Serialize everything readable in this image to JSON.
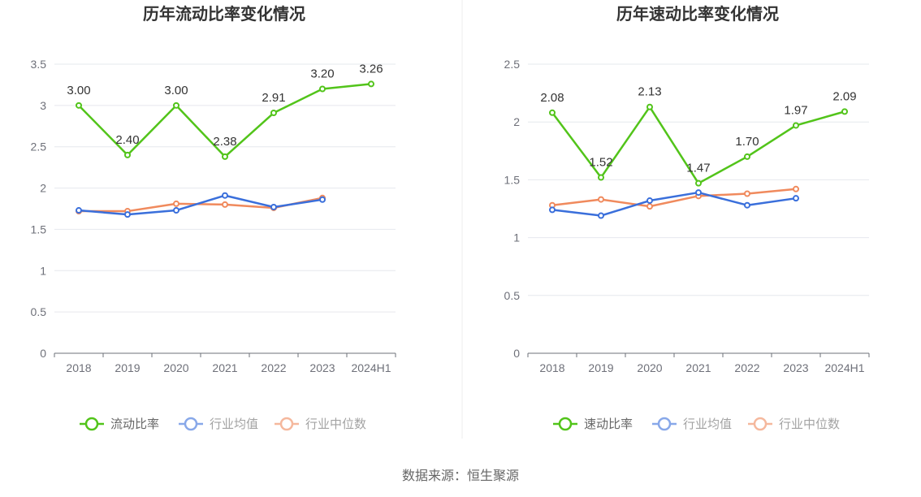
{
  "source_text": "数据来源：恒生聚源",
  "colors": {
    "main": "#52c41a",
    "avg": "#3a6fdb",
    "median": "#f08a5d",
    "grid": "#e6e8ee",
    "axis": "#6e7079"
  },
  "chart_data": [
    {
      "type": "line",
      "title": "历年流动比率变化情况",
      "categories": [
        "2018",
        "2019",
        "2020",
        "2021",
        "2022",
        "2023",
        "2024H1"
      ],
      "ylim": [
        0,
        3.5
      ],
      "yticks": [
        "0",
        "0.5",
        "1",
        "1.5",
        "2",
        "2.5",
        "3",
        "3.5"
      ],
      "grid": true,
      "legend_position": "bottom",
      "series": [
        {
          "name": "流动比率",
          "values": [
            3.0,
            2.4,
            3.0,
            2.38,
            2.91,
            3.2,
            3.26
          ],
          "labels": [
            "3.00",
            "2.40",
            "3.00",
            "2.38",
            "2.91",
            "3.20",
            "3.26"
          ]
        },
        {
          "name": "行业均值",
          "values": [
            1.73,
            1.68,
            1.73,
            1.91,
            1.77,
            1.86,
            null
          ]
        },
        {
          "name": "行业中位数",
          "values": [
            1.72,
            1.72,
            1.81,
            1.8,
            1.76,
            1.88,
            null
          ]
        }
      ]
    },
    {
      "type": "line",
      "title": "历年速动比率变化情况",
      "categories": [
        "2018",
        "2019",
        "2020",
        "2021",
        "2022",
        "2023",
        "2024H1"
      ],
      "ylim": [
        0,
        2.5
      ],
      "yticks": [
        "0",
        "0.5",
        "1",
        "1.5",
        "2",
        "2.5"
      ],
      "grid": true,
      "legend_position": "bottom",
      "series": [
        {
          "name": "速动比率",
          "values": [
            2.08,
            1.52,
            2.13,
            1.47,
            1.7,
            1.97,
            2.09
          ],
          "labels": [
            "2.08",
            "1.52",
            "2.13",
            "1.47",
            "1.70",
            "1.97",
            "2.09"
          ]
        },
        {
          "name": "行业均值",
          "values": [
            1.24,
            1.19,
            1.32,
            1.39,
            1.28,
            1.34,
            null
          ]
        },
        {
          "name": "行业中位数",
          "values": [
            1.28,
            1.33,
            1.27,
            1.36,
            1.38,
            1.42,
            null
          ]
        }
      ]
    }
  ]
}
